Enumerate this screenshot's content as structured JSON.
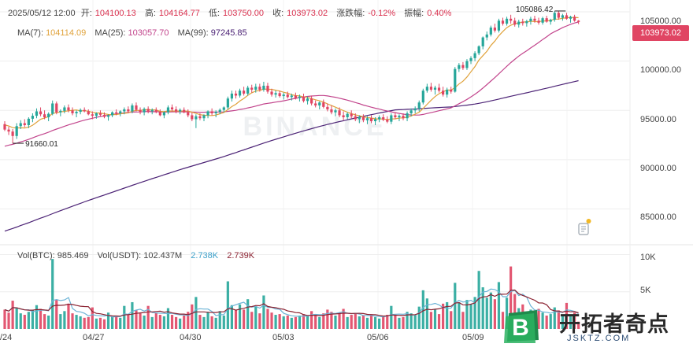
{
  "ohlc_bar": {
    "date": "2025/05/12 12:00",
    "open_label": "开:",
    "open": "104100.13",
    "high_label": "高:",
    "high": "104164.77",
    "low_label": "低:",
    "low": "103750.00",
    "close_label": "收:",
    "close": "103973.02",
    "change_label": "涨跌幅:",
    "change": "-0.12%",
    "amplitude_label": "振幅:",
    "amplitude": "0.40%"
  },
  "ma_legend": {
    "ma7_label": "MA(7):",
    "ma7": "104114.09",
    "ma25_label": "MA(25):",
    "ma25": "103057.70",
    "ma99_label": "MA(99):",
    "ma99": "97245.85"
  },
  "volume_legend": {
    "btc_label": "Vol(BTC):",
    "btc": "985.469",
    "usdt_label": "Vol(USDT):",
    "usdt": "102.437M",
    "ma1": "2.738K",
    "ma2": "2.739K"
  },
  "price_axis_labels": [
    "105000.00",
    "100000.00",
    "95000.00",
    "90000.00",
    "85000.00"
  ],
  "volume_axis_labels": [
    "10K",
    "5K"
  ],
  "date_labels": [
    "/24",
    "04/27",
    "04/30",
    "05/03",
    "05/06",
    "05/09"
  ],
  "current_price": "103973.02",
  "markers": {
    "high": "105086.42",
    "low": "91660.01"
  },
  "watermark": "BINANCE",
  "brand": {
    "name": "开拓者奇点",
    "url": "JSKTZ.COM",
    "logo_letter": "B"
  },
  "colors": {
    "up": "#26a69a",
    "down": "#e04563",
    "ma7": "#e0a23a",
    "ma25": "#c2448c",
    "ma99": "#4b2275",
    "vol_ma1": "#6bb3d6",
    "vol_ma2": "#8b2231",
    "grid": "#eeeeee"
  },
  "chart_data": {
    "type": "candlestick",
    "timeframe": "4h",
    "y_axis": {
      "min": 82000,
      "max": 106200,
      "ticks": [
        105000,
        100000,
        95000,
        90000,
        85000
      ]
    },
    "volume_axis": {
      "max": 11000,
      "ticks": [
        10000,
        5000
      ]
    },
    "x_range": [
      "04/24",
      "05/12 12:00"
    ],
    "candles": [
      {
        "o": 93600,
        "h": 93900,
        "l": 92900,
        "c": 93050,
        "v": 2600
      },
      {
        "o": 93050,
        "h": 93350,
        "l": 92500,
        "c": 92850,
        "v": 2200
      },
      {
        "o": 92850,
        "h": 93100,
        "l": 91660,
        "c": 92400,
        "v": 3800
      },
      {
        "o": 92400,
        "h": 93700,
        "l": 92100,
        "c": 93400,
        "v": 2800
      },
      {
        "o": 93400,
        "h": 94000,
        "l": 93100,
        "c": 93700,
        "v": 2100
      },
      {
        "o": 93700,
        "h": 94100,
        "l": 93300,
        "c": 93500,
        "v": 1900
      },
      {
        "o": 93500,
        "h": 94300,
        "l": 93200,
        "c": 94150,
        "v": 2300
      },
      {
        "o": 94150,
        "h": 94700,
        "l": 93800,
        "c": 94450,
        "v": 2500
      },
      {
        "o": 94450,
        "h": 95200,
        "l": 94200,
        "c": 94900,
        "v": 3200
      },
      {
        "o": 94900,
        "h": 95300,
        "l": 94400,
        "c": 94600,
        "v": 2700
      },
      {
        "o": 94600,
        "h": 95000,
        "l": 94100,
        "c": 94300,
        "v": 2000
      },
      {
        "o": 94300,
        "h": 94800,
        "l": 93900,
        "c": 94650,
        "v": 1800
      },
      {
        "o": 94650,
        "h": 96000,
        "l": 94500,
        "c": 95700,
        "v": 9400
      },
      {
        "o": 95700,
        "h": 95900,
        "l": 94600,
        "c": 94800,
        "v": 3900
      },
      {
        "o": 94800,
        "h": 95100,
        "l": 94400,
        "c": 94950,
        "v": 2000
      },
      {
        "o": 94950,
        "h": 95500,
        "l": 94700,
        "c": 95300,
        "v": 2400
      },
      {
        "o": 95300,
        "h": 95600,
        "l": 94800,
        "c": 95000,
        "v": 3400
      },
      {
        "o": 95000,
        "h": 95300,
        "l": 94500,
        "c": 94700,
        "v": 2100
      },
      {
        "o": 94700,
        "h": 95000,
        "l": 94300,
        "c": 94850,
        "v": 1900
      },
      {
        "o": 94850,
        "h": 95200,
        "l": 94600,
        "c": 95050,
        "v": 1700
      },
      {
        "o": 95050,
        "h": 95300,
        "l": 94800,
        "c": 94900,
        "v": 1500
      },
      {
        "o": 94900,
        "h": 95100,
        "l": 94500,
        "c": 94600,
        "v": 1600
      },
      {
        "o": 94600,
        "h": 94900,
        "l": 94100,
        "c": 94450,
        "v": 2900
      },
      {
        "o": 94450,
        "h": 94800,
        "l": 94150,
        "c": 94700,
        "v": 1400
      },
      {
        "o": 94700,
        "h": 95000,
        "l": 94400,
        "c": 94550,
        "v": 1500
      },
      {
        "o": 94550,
        "h": 94800,
        "l": 94200,
        "c": 94350,
        "v": 1300
      },
      {
        "o": 94350,
        "h": 94600,
        "l": 93950,
        "c": 94500,
        "v": 2200
      },
      {
        "o": 94500,
        "h": 94900,
        "l": 94300,
        "c": 94800,
        "v": 1600
      },
      {
        "o": 94800,
        "h": 95100,
        "l": 94500,
        "c": 94700,
        "v": 1700
      },
      {
        "o": 94700,
        "h": 95000,
        "l": 94400,
        "c": 94900,
        "v": 1500
      },
      {
        "o": 94900,
        "h": 95300,
        "l": 94600,
        "c": 95100,
        "v": 3100
      },
      {
        "o": 95100,
        "h": 95400,
        "l": 94700,
        "c": 94900,
        "v": 2000
      },
      {
        "o": 94900,
        "h": 95700,
        "l": 94700,
        "c": 95500,
        "v": 3600
      },
      {
        "o": 95500,
        "h": 95800,
        "l": 94900,
        "c": 95050,
        "v": 2500
      },
      {
        "o": 95050,
        "h": 95300,
        "l": 94600,
        "c": 94800,
        "v": 2100
      },
      {
        "o": 94800,
        "h": 95300,
        "l": 94500,
        "c": 95150,
        "v": 1800
      },
      {
        "o": 95150,
        "h": 95400,
        "l": 94700,
        "c": 94900,
        "v": 3100
      },
      {
        "o": 94900,
        "h": 95200,
        "l": 94600,
        "c": 95050,
        "v": 1600
      },
      {
        "o": 95050,
        "h": 95300,
        "l": 94700,
        "c": 94850,
        "v": 2200
      },
      {
        "o": 94850,
        "h": 95100,
        "l": 94400,
        "c": 94500,
        "v": 1900
      },
      {
        "o": 94500,
        "h": 94900,
        "l": 94200,
        "c": 94800,
        "v": 1700
      },
      {
        "o": 94800,
        "h": 95500,
        "l": 94600,
        "c": 95300,
        "v": 2800
      },
      {
        "o": 95300,
        "h": 95600,
        "l": 94900,
        "c": 95100,
        "v": 1900
      },
      {
        "o": 95100,
        "h": 95400,
        "l": 94700,
        "c": 94900,
        "v": 1600
      },
      {
        "o": 94900,
        "h": 95200,
        "l": 94600,
        "c": 95050,
        "v": 1400
      },
      {
        "o": 95050,
        "h": 95300,
        "l": 94700,
        "c": 94800,
        "v": 1800
      },
      {
        "o": 94800,
        "h": 95100,
        "l": 94300,
        "c": 94500,
        "v": 2300
      },
      {
        "o": 94500,
        "h": 94800,
        "l": 93900,
        "c": 94100,
        "v": 3300
      },
      {
        "o": 94100,
        "h": 94600,
        "l": 93200,
        "c": 94400,
        "v": 4300
      },
      {
        "o": 94400,
        "h": 94700,
        "l": 94000,
        "c": 94200,
        "v": 1900
      },
      {
        "o": 94200,
        "h": 94600,
        "l": 93900,
        "c": 94500,
        "v": 1600
      },
      {
        "o": 94500,
        "h": 95000,
        "l": 94200,
        "c": 94900,
        "v": 2300
      },
      {
        "o": 94900,
        "h": 95200,
        "l": 94500,
        "c": 94700,
        "v": 1700
      },
      {
        "o": 94700,
        "h": 95000,
        "l": 94300,
        "c": 94850,
        "v": 1500
      },
      {
        "o": 94850,
        "h": 95200,
        "l": 94600,
        "c": 95050,
        "v": 2400
      },
      {
        "o": 95050,
        "h": 95400,
        "l": 94800,
        "c": 95300,
        "v": 1800
      },
      {
        "o": 95300,
        "h": 96400,
        "l": 95100,
        "c": 96200,
        "v": 6400
      },
      {
        "o": 96200,
        "h": 97000,
        "l": 95900,
        "c": 96700,
        "v": 3200
      },
      {
        "o": 96700,
        "h": 97000,
        "l": 96200,
        "c": 96500,
        "v": 2500
      },
      {
        "o": 96500,
        "h": 97200,
        "l": 96300,
        "c": 97000,
        "v": 3300
      },
      {
        "o": 97000,
        "h": 97400,
        "l": 96500,
        "c": 96700,
        "v": 2600
      },
      {
        "o": 96700,
        "h": 97500,
        "l": 96500,
        "c": 97300,
        "v": 4000
      },
      {
        "o": 97300,
        "h": 97600,
        "l": 96800,
        "c": 97100,
        "v": 2300
      },
      {
        "o": 97100,
        "h": 97700,
        "l": 96800,
        "c": 97400,
        "v": 3000
      },
      {
        "o": 97400,
        "h": 97700,
        "l": 96900,
        "c": 97100,
        "v": 2100
      },
      {
        "o": 97100,
        "h": 97900,
        "l": 96900,
        "c": 97500,
        "v": 4500
      },
      {
        "o": 97500,
        "h": 97800,
        "l": 96700,
        "c": 96900,
        "v": 2700
      },
      {
        "o": 96900,
        "h": 97200,
        "l": 96400,
        "c": 96600,
        "v": 2200
      },
      {
        "o": 96600,
        "h": 97000,
        "l": 96300,
        "c": 96750,
        "v": 1900
      },
      {
        "o": 96750,
        "h": 97000,
        "l": 96300,
        "c": 96450,
        "v": 2000
      },
      {
        "o": 96450,
        "h": 96800,
        "l": 96100,
        "c": 96600,
        "v": 1700
      },
      {
        "o": 96600,
        "h": 96900,
        "l": 96200,
        "c": 96350,
        "v": 1800
      },
      {
        "o": 96350,
        "h": 96700,
        "l": 96000,
        "c": 96500,
        "v": 1500
      },
      {
        "o": 96500,
        "h": 96800,
        "l": 96100,
        "c": 96250,
        "v": 1600
      },
      {
        "o": 96250,
        "h": 96600,
        "l": 95900,
        "c": 96400,
        "v": 1800
      },
      {
        "o": 96400,
        "h": 96700,
        "l": 95800,
        "c": 95950,
        "v": 2000
      },
      {
        "o": 95950,
        "h": 96400,
        "l": 95600,
        "c": 96200,
        "v": 1700
      },
      {
        "o": 96200,
        "h": 96500,
        "l": 95500,
        "c": 95700,
        "v": 2400
      },
      {
        "o": 95700,
        "h": 96000,
        "l": 95300,
        "c": 95500,
        "v": 1900
      },
      {
        "o": 95500,
        "h": 95900,
        "l": 95100,
        "c": 95800,
        "v": 1600
      },
      {
        "o": 95800,
        "h": 96100,
        "l": 95200,
        "c": 95350,
        "v": 2100
      },
      {
        "o": 95350,
        "h": 95700,
        "l": 94900,
        "c": 95100,
        "v": 2600
      },
      {
        "o": 95100,
        "h": 95500,
        "l": 94600,
        "c": 94800,
        "v": 2300
      },
      {
        "o": 94800,
        "h": 95200,
        "l": 94400,
        "c": 95000,
        "v": 1800
      },
      {
        "o": 95000,
        "h": 95300,
        "l": 94300,
        "c": 94500,
        "v": 2200
      },
      {
        "o": 94500,
        "h": 94900,
        "l": 94000,
        "c": 94300,
        "v": 2700
      },
      {
        "o": 94300,
        "h": 94800,
        "l": 94100,
        "c": 94650,
        "v": 1600
      },
      {
        "o": 94650,
        "h": 95000,
        "l": 94200,
        "c": 94400,
        "v": 1900
      },
      {
        "o": 94400,
        "h": 94700,
        "l": 93900,
        "c": 94100,
        "v": 2100
      },
      {
        "o": 94100,
        "h": 94500,
        "l": 93700,
        "c": 94300,
        "v": 1700
      },
      {
        "o": 94300,
        "h": 94600,
        "l": 93800,
        "c": 94000,
        "v": 1800
      },
      {
        "o": 94000,
        "h": 94400,
        "l": 93600,
        "c": 94200,
        "v": 1500
      },
      {
        "o": 94200,
        "h": 94500,
        "l": 93700,
        "c": 93900,
        "v": 2000
      },
      {
        "o": 93900,
        "h": 94300,
        "l": 93500,
        "c": 94100,
        "v": 1600
      },
      {
        "o": 94100,
        "h": 94500,
        "l": 93800,
        "c": 94300,
        "v": 1400
      },
      {
        "o": 94300,
        "h": 94600,
        "l": 93900,
        "c": 94050,
        "v": 1700
      },
      {
        "o": 94050,
        "h": 94400,
        "l": 93700,
        "c": 93850,
        "v": 1900
      },
      {
        "o": 93850,
        "h": 94700,
        "l": 93600,
        "c": 94500,
        "v": 3100
      },
      {
        "o": 94500,
        "h": 94800,
        "l": 94100,
        "c": 94300,
        "v": 1800
      },
      {
        "o": 94300,
        "h": 94600,
        "l": 93900,
        "c": 94450,
        "v": 1500
      },
      {
        "o": 94450,
        "h": 94700,
        "l": 94000,
        "c": 94200,
        "v": 1600
      },
      {
        "o": 94200,
        "h": 94900,
        "l": 93900,
        "c": 94700,
        "v": 2300
      },
      {
        "o": 94700,
        "h": 95200,
        "l": 94400,
        "c": 95000,
        "v": 2100
      },
      {
        "o": 95000,
        "h": 95400,
        "l": 94700,
        "c": 95200,
        "v": 1900
      },
      {
        "o": 95200,
        "h": 96000,
        "l": 94900,
        "c": 95800,
        "v": 3000
      },
      {
        "o": 95800,
        "h": 97200,
        "l": 95600,
        "c": 97000,
        "v": 5200
      },
      {
        "o": 97000,
        "h": 97700,
        "l": 96800,
        "c": 97400,
        "v": 4100
      },
      {
        "o": 97400,
        "h": 97800,
        "l": 96900,
        "c": 97100,
        "v": 2300
      },
      {
        "o": 97100,
        "h": 97500,
        "l": 96600,
        "c": 97300,
        "v": 2600
      },
      {
        "o": 97300,
        "h": 97700,
        "l": 96800,
        "c": 97000,
        "v": 2000
      },
      {
        "o": 97000,
        "h": 97400,
        "l": 96400,
        "c": 96600,
        "v": 3400
      },
      {
        "o": 96600,
        "h": 97300,
        "l": 96300,
        "c": 97100,
        "v": 3600
      },
      {
        "o": 97100,
        "h": 97400,
        "l": 96700,
        "c": 96900,
        "v": 2400
      },
      {
        "o": 96900,
        "h": 99400,
        "l": 96800,
        "c": 99200,
        "v": 6200
      },
      {
        "o": 99200,
        "h": 99800,
        "l": 98900,
        "c": 99600,
        "v": 3600
      },
      {
        "o": 99600,
        "h": 99900,
        "l": 99100,
        "c": 99300,
        "v": 2300
      },
      {
        "o": 99300,
        "h": 100200,
        "l": 99100,
        "c": 100000,
        "v": 3900
      },
      {
        "o": 100000,
        "h": 100500,
        "l": 99700,
        "c": 100300,
        "v": 3300
      },
      {
        "o": 100300,
        "h": 101000,
        "l": 100000,
        "c": 100800,
        "v": 4300
      },
      {
        "o": 100800,
        "h": 101600,
        "l": 100600,
        "c": 101500,
        "v": 7800
      },
      {
        "o": 101500,
        "h": 102500,
        "l": 101200,
        "c": 102400,
        "v": 5600
      },
      {
        "o": 102400,
        "h": 103000,
        "l": 102100,
        "c": 102700,
        "v": 4200
      },
      {
        "o": 102700,
        "h": 103600,
        "l": 102500,
        "c": 103400,
        "v": 4900
      },
      {
        "o": 103400,
        "h": 103800,
        "l": 102900,
        "c": 103100,
        "v": 4000
      },
      {
        "o": 103100,
        "h": 104300,
        "l": 102900,
        "c": 104100,
        "v": 6300
      },
      {
        "o": 104100,
        "h": 104400,
        "l": 103600,
        "c": 103800,
        "v": 2300
      },
      {
        "o": 103800,
        "h": 104500,
        "l": 103600,
        "c": 104300,
        "v": 4200
      },
      {
        "o": 104300,
        "h": 104700,
        "l": 103800,
        "c": 104100,
        "v": 8400
      },
      {
        "o": 104100,
        "h": 104400,
        "l": 103500,
        "c": 103700,
        "v": 4700
      },
      {
        "o": 103700,
        "h": 104200,
        "l": 103400,
        "c": 104000,
        "v": 2800
      },
      {
        "o": 104000,
        "h": 104300,
        "l": 103600,
        "c": 103850,
        "v": 3300
      },
      {
        "o": 103850,
        "h": 104200,
        "l": 103500,
        "c": 104050,
        "v": 2100
      },
      {
        "o": 104050,
        "h": 104500,
        "l": 103700,
        "c": 104300,
        "v": 2600
      },
      {
        "o": 104300,
        "h": 104600,
        "l": 103900,
        "c": 104100,
        "v": 1900
      },
      {
        "o": 104100,
        "h": 104400,
        "l": 103700,
        "c": 103900,
        "v": 2700
      },
      {
        "o": 103900,
        "h": 104500,
        "l": 103700,
        "c": 104350,
        "v": 2200
      },
      {
        "o": 104350,
        "h": 104600,
        "l": 103900,
        "c": 104000,
        "v": 1800
      },
      {
        "o": 104000,
        "h": 104300,
        "l": 103700,
        "c": 104200,
        "v": 2000
      },
      {
        "o": 104200,
        "h": 105086,
        "l": 104000,
        "c": 104900,
        "v": 2900
      },
      {
        "o": 104900,
        "h": 105050,
        "l": 104200,
        "c": 104400,
        "v": 2500
      },
      {
        "o": 104400,
        "h": 104800,
        "l": 104100,
        "c": 104650,
        "v": 1900
      },
      {
        "o": 104650,
        "h": 104900,
        "l": 104200,
        "c": 104300,
        "v": 3500
      },
      {
        "o": 104300,
        "h": 104600,
        "l": 103900,
        "c": 104500,
        "v": 1700
      },
      {
        "o": 104500,
        "h": 104700,
        "l": 104000,
        "c": 104100,
        "v": 2200
      },
      {
        "o": 104100,
        "h": 104165,
        "l": 103750,
        "c": 103973,
        "v": 985
      }
    ]
  }
}
